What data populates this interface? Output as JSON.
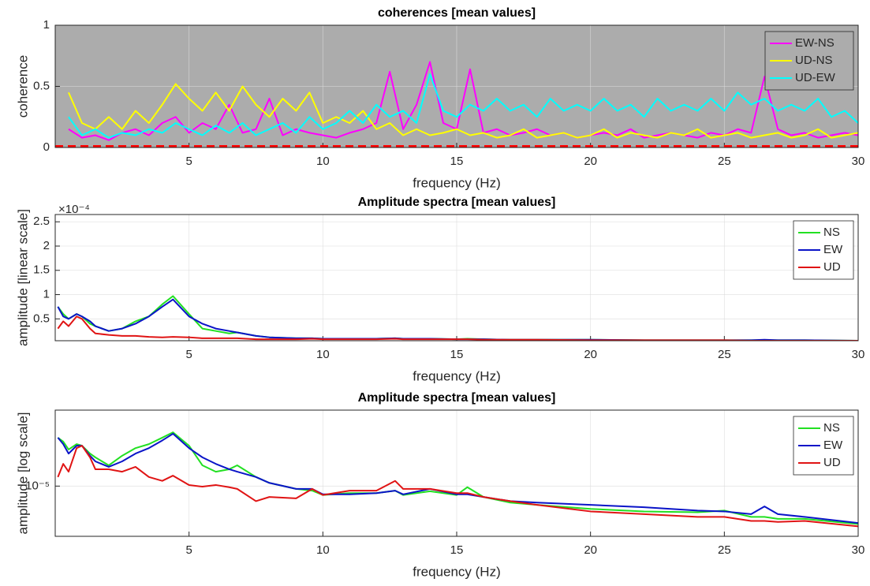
{
  "chart_data": [
    {
      "type": "line",
      "title": "coherences [mean values]",
      "xlabel": "frequency (Hz)",
      "ylabel": "coherence",
      "xlim": [
        0,
        30
      ],
      "ylim": [
        0,
        1
      ],
      "xticks": [
        5,
        10,
        15,
        20,
        25,
        30
      ],
      "yticks": [
        0,
        0.5,
        1
      ],
      "grid": true,
      "legend": "northeast",
      "background": "#acacac",
      "reference_line": {
        "value": 0.01,
        "color": "#ff0000",
        "dashed": true
      },
      "x": [
        0.5,
        1,
        1.5,
        2,
        2.5,
        3,
        3.5,
        4,
        4.5,
        5,
        5.5,
        6,
        6.5,
        7,
        7.5,
        8,
        8.5,
        9,
        9.5,
        10,
        10.5,
        11,
        11.5,
        12,
        12.5,
        13,
        13.5,
        14,
        14.5,
        15,
        15.5,
        16,
        16.5,
        17,
        17.5,
        18,
        18.5,
        19,
        19.5,
        20,
        20.5,
        21,
        21.5,
        22,
        22.5,
        23,
        23.5,
        24,
        24.5,
        25,
        25.5,
        26,
        26.5,
        27,
        27.5,
        28,
        28.5,
        29,
        29.5,
        30
      ],
      "series": [
        {
          "name": "EW-NS",
          "color": "#ff00ff",
          "values": [
            0.15,
            0.08,
            0.1,
            0.06,
            0.12,
            0.15,
            0.1,
            0.2,
            0.25,
            0.12,
            0.2,
            0.15,
            0.35,
            0.12,
            0.15,
            0.4,
            0.1,
            0.15,
            0.12,
            0.1,
            0.08,
            0.12,
            0.15,
            0.2,
            0.62,
            0.15,
            0.35,
            0.7,
            0.2,
            0.15,
            0.64,
            0.12,
            0.15,
            0.1,
            0.12,
            0.15,
            0.1,
            0.12,
            0.08,
            0.1,
            0.12,
            0.1,
            0.15,
            0.08,
            0.1,
            0.12,
            0.1,
            0.08,
            0.12,
            0.1,
            0.15,
            0.12,
            0.58,
            0.15,
            0.1,
            0.12,
            0.08,
            0.1,
            0.12,
            0.1
          ]
        },
        {
          "name": "UD-NS",
          "color": "#ffff00",
          "values": [
            0.45,
            0.2,
            0.15,
            0.25,
            0.15,
            0.3,
            0.2,
            0.35,
            0.52,
            0.4,
            0.3,
            0.45,
            0.3,
            0.5,
            0.35,
            0.25,
            0.4,
            0.3,
            0.45,
            0.2,
            0.25,
            0.2,
            0.3,
            0.15,
            0.2,
            0.1,
            0.15,
            0.1,
            0.12,
            0.15,
            0.1,
            0.12,
            0.08,
            0.1,
            0.15,
            0.08,
            0.1,
            0.12,
            0.08,
            0.1,
            0.15,
            0.08,
            0.12,
            0.1,
            0.08,
            0.12,
            0.1,
            0.15,
            0.08,
            0.1,
            0.12,
            0.08,
            0.1,
            0.12,
            0.08,
            0.1,
            0.15,
            0.08,
            0.1,
            0.12
          ]
        },
        {
          "name": "UD-EW",
          "color": "#00ffff",
          "values": [
            0.25,
            0.1,
            0.15,
            0.08,
            0.12,
            0.1,
            0.15,
            0.12,
            0.2,
            0.15,
            0.1,
            0.18,
            0.12,
            0.2,
            0.1,
            0.15,
            0.2,
            0.12,
            0.25,
            0.15,
            0.2,
            0.3,
            0.2,
            0.35,
            0.25,
            0.3,
            0.2,
            0.6,
            0.3,
            0.25,
            0.35,
            0.3,
            0.4,
            0.3,
            0.35,
            0.25,
            0.4,
            0.3,
            0.35,
            0.3,
            0.4,
            0.3,
            0.35,
            0.25,
            0.4,
            0.3,
            0.35,
            0.3,
            0.4,
            0.3,
            0.45,
            0.35,
            0.4,
            0.3,
            0.35,
            0.3,
            0.4,
            0.25,
            0.3,
            0.2
          ]
        }
      ]
    },
    {
      "type": "line",
      "title": "Amplitude spectra [mean values]",
      "xlabel": "frequency (Hz)",
      "ylabel": "amplitude [linear scale]",
      "y_multiplier": "×10⁻⁴",
      "xlim": [
        0,
        30
      ],
      "ylim": [
        0.05,
        2.65
      ],
      "xticks": [
        5,
        10,
        15,
        20,
        25,
        30
      ],
      "yticks": [
        0.5,
        1,
        1.5,
        2,
        2.5
      ],
      "grid": true,
      "legend": "northeast",
      "background": "#ffffff",
      "x": [
        0.1,
        0.3,
        0.5,
        0.8,
        1,
        1.3,
        1.5,
        2,
        2.5,
        3,
        3.5,
        4,
        4.4,
        5,
        5.5,
        6,
        6.5,
        6.8,
        7.5,
        8,
        9,
        9.6,
        10,
        11,
        12,
        12.7,
        13,
        14,
        15,
        15.4,
        16,
        17,
        18,
        20,
        22,
        24,
        25,
        26,
        26.5,
        27,
        28,
        30
      ],
      "series": [
        {
          "name": "NS",
          "color": "#22e022",
          "values": [
            0.75,
            0.6,
            0.5,
            0.6,
            0.55,
            0.4,
            0.35,
            0.25,
            0.3,
            0.45,
            0.55,
            0.8,
            0.97,
            0.6,
            0.3,
            0.25,
            0.2,
            0.22,
            0.15,
            0.12,
            0.1,
            0.1,
            0.09,
            0.09,
            0.09,
            0.1,
            0.09,
            0.09,
            0.08,
            0.09,
            0.08,
            0.07,
            0.07,
            0.07,
            0.06,
            0.06,
            0.06,
            0.06,
            0.06,
            0.06,
            0.06,
            0.05
          ]
        },
        {
          "name": "EW",
          "color": "#0a14c8",
          "values": [
            0.75,
            0.55,
            0.5,
            0.6,
            0.55,
            0.45,
            0.35,
            0.25,
            0.3,
            0.4,
            0.55,
            0.75,
            0.9,
            0.55,
            0.4,
            0.3,
            0.25,
            0.22,
            0.15,
            0.12,
            0.1,
            0.1,
            0.09,
            0.09,
            0.09,
            0.1,
            0.09,
            0.09,
            0.08,
            0.08,
            0.08,
            0.07,
            0.07,
            0.07,
            0.06,
            0.06,
            0.06,
            0.06,
            0.07,
            0.06,
            0.06,
            0.05
          ]
        },
        {
          "name": "UD",
          "color": "#e01414",
          "values": [
            0.3,
            0.45,
            0.35,
            0.55,
            0.5,
            0.3,
            0.2,
            0.17,
            0.15,
            0.15,
            0.13,
            0.12,
            0.13,
            0.12,
            0.1,
            0.1,
            0.1,
            0.1,
            0.08,
            0.08,
            0.08,
            0.09,
            0.08,
            0.08,
            0.08,
            0.09,
            0.08,
            0.08,
            0.08,
            0.08,
            0.07,
            0.07,
            0.07,
            0.06,
            0.06,
            0.06,
            0.06,
            0.05,
            0.05,
            0.05,
            0.05,
            0.05
          ]
        }
      ]
    },
    {
      "type": "line",
      "title": "Amplitude spectra [mean values]",
      "xlabel": "frequency (Hz)",
      "ylabel": "amplitude [log scale]",
      "yscale": "log",
      "xlim": [
        0,
        30
      ],
      "ylim": [
        4e-06,
        4e-05
      ],
      "xticks": [
        5,
        10,
        15,
        20,
        25,
        30
      ],
      "yticks": [
        {
          "value": 1e-05,
          "label": "10⁻⁵"
        }
      ],
      "grid": true,
      "legend": "northeast",
      "background": "#ffffff",
      "x": [
        0.1,
        0.3,
        0.5,
        0.8,
        1,
        1.3,
        1.5,
        2,
        2.5,
        3,
        3.5,
        4,
        4.4,
        5,
        5.5,
        6,
        6.5,
        6.8,
        7.5,
        8,
        9,
        9.6,
        10,
        11,
        12,
        12.7,
        13,
        14,
        15,
        15.4,
        16,
        17,
        18,
        20,
        22,
        24,
        25,
        26,
        26.5,
        27,
        28,
        30
      ],
      "series": [
        {
          "name": "NS",
          "color": "#22e022",
          "values": [
            2.42e-05,
            2.25e-05,
            1.95e-05,
            2.15e-05,
            2.09e-05,
            1.81e-05,
            1.69e-05,
            1.46e-05,
            1.74e-05,
            2e-05,
            2.15e-05,
            2.42e-05,
            2.67e-05,
            2.09e-05,
            1.46e-05,
            1.3e-05,
            1.36e-05,
            1.46e-05,
            1.18e-05,
            1.06e-05,
            9.5e-06,
            9.2e-06,
            8.5e-06,
            8.8e-06,
            8.8e-06,
            9.2e-06,
            8.5e-06,
            9.1e-06,
            8.5e-06,
            9.8e-06,
            8.2e-06,
            7.4e-06,
            7.1e-06,
            6.6e-06,
            6.3e-06,
            6.2e-06,
            6.4e-06,
            5.7e-06,
            5.7e-06,
            5.5e-06,
            5.5e-06,
            5e-06
          ]
        },
        {
          "name": "EW",
          "color": "#0a14c8",
          "values": [
            2.42e-05,
            2.15e-05,
            1.81e-05,
            2.09e-05,
            2.09e-05,
            1.74e-05,
            1.57e-05,
            1.42e-05,
            1.57e-05,
            1.81e-05,
            2e-05,
            2.3e-05,
            2.6e-05,
            2e-05,
            1.69e-05,
            1.5e-05,
            1.36e-05,
            1.3e-05,
            1.18e-05,
            1.06e-05,
            9.5e-06,
            9.5e-06,
            8.6e-06,
            8.6e-06,
            8.8e-06,
            9.2e-06,
            8.6e-06,
            9.5e-06,
            8.6e-06,
            8.6e-06,
            8.2e-06,
            7.6e-06,
            7.4e-06,
            7.1e-06,
            6.8e-06,
            6.4e-06,
            6.3e-06,
            6e-06,
            6.9e-06,
            6e-06,
            5.7e-06,
            5.1e-06
          ]
        },
        {
          "name": "UD",
          "color": "#e01414",
          "values": [
            1.18e-05,
            1.5e-05,
            1.3e-05,
            2e-05,
            2.09e-05,
            1.69e-05,
            1.36e-05,
            1.36e-05,
            1.3e-05,
            1.42e-05,
            1.18e-05,
            1.1e-05,
            1.21e-05,
            1.02e-05,
            9.9e-06,
            1.02e-05,
            9.8e-06,
            9.5e-06,
            7.6e-06,
            8.2e-06,
            8e-06,
            9.5e-06,
            8.5e-06,
            9.2e-06,
            9.2e-06,
            1.1e-05,
            9.5e-06,
            9.5e-06,
            8.8e-06,
            8.8e-06,
            8.2e-06,
            7.6e-06,
            7.1e-06,
            6.3e-06,
            6e-06,
            5.7e-06,
            5.7e-06,
            5.3e-06,
            5.3e-06,
            5.2e-06,
            5.3e-06,
            4.8e-06
          ]
        }
      ]
    }
  ]
}
